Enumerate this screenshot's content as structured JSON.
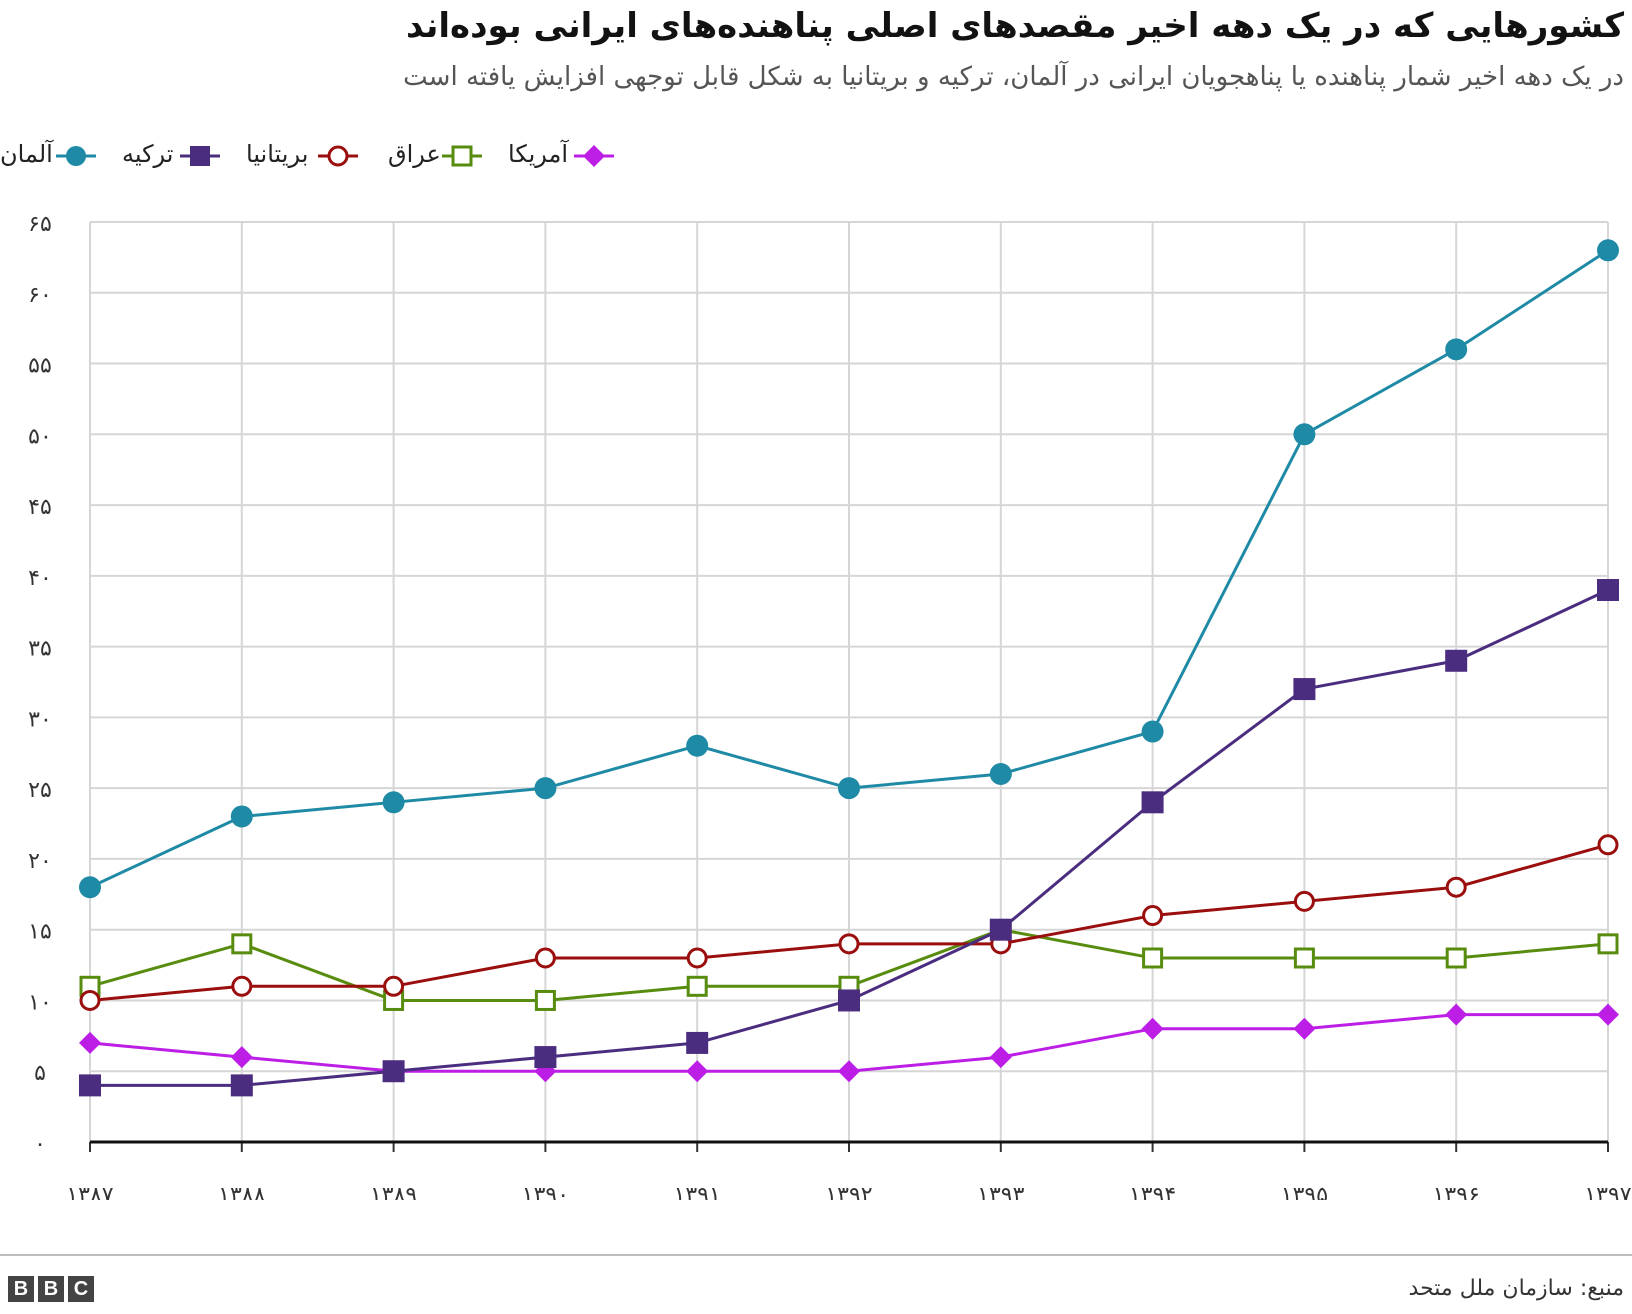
{
  "header": {
    "title": "کشورهایی که در یک دهه اخیر مقصدهای اصلی پناهنده‌های ایرانی بوده‌اند",
    "subtitle": "در یک دهه اخیر شمار پناهنده یا پناهجویان ایرانی در آلمان، ترکیه و بریتانیا به شکل قابل توجهی افزایش یافته است"
  },
  "footer": {
    "source": "منبع: سازمان ملل متحد",
    "logo_letters": [
      "B",
      "B",
      "C"
    ]
  },
  "chart_data": {
    "type": "line",
    "title": "کشورهایی که در یک دهه اخیر مقصدهای اصلی پناهنده‌های ایرانی بوده‌اند",
    "xlabel": "",
    "ylabel": "",
    "ylim": [
      0,
      65
    ],
    "y_ticks": [
      0,
      5,
      10,
      15,
      20,
      25,
      30,
      35,
      40,
      45,
      50,
      55,
      60,
      65
    ],
    "y_tick_labels": [
      "۰",
      "۵",
      "۱۰",
      "۱۵",
      "۲۰",
      "۲۵",
      "۳۰",
      "۳۵",
      "۴۰",
      "۴۵",
      "۵۰",
      "۵۵",
      "۶۰",
      "۶۵"
    ],
    "categories": [
      "۱۳۸۷",
      "۱۳۸۸",
      "۱۳۸۹",
      "۱۳۹۰",
      "۱۳۹۱",
      "۱۳۹۲",
      "۱۳۹۳",
      "۱۳۹۴",
      "۱۳۹۵",
      "۱۳۹۶",
      "۱۳۹۷"
    ],
    "grid": true,
    "legend_position": "top-left",
    "series": [
      {
        "name": "آلمان",
        "color": "#1f8aa5",
        "marker": "circle-filled",
        "values": [
          18,
          23,
          24,
          25,
          28,
          25,
          26,
          29,
          50,
          56,
          63
        ]
      },
      {
        "name": "ترکیه",
        "color": "#4b2d80",
        "marker": "square-filled",
        "values": [
          4,
          4,
          5,
          6,
          7,
          10,
          15,
          24,
          32,
          34,
          39
        ]
      },
      {
        "name": "بریتانیا",
        "color": "#9b0e0e",
        "marker": "circle-open",
        "values": [
          10,
          11,
          11,
          13,
          13,
          14,
          14,
          16,
          17,
          18,
          21
        ]
      },
      {
        "name": "عراق",
        "color": "#588c0f",
        "marker": "square-open",
        "values": [
          11,
          14,
          10,
          10,
          11,
          11,
          15,
          13,
          13,
          13,
          14
        ]
      },
      {
        "name": "آمریکا",
        "color": "#bd1ee6",
        "marker": "diamond-filled",
        "values": [
          7,
          6,
          5,
          5,
          5,
          5,
          6,
          8,
          8,
          9,
          9
        ]
      }
    ]
  }
}
